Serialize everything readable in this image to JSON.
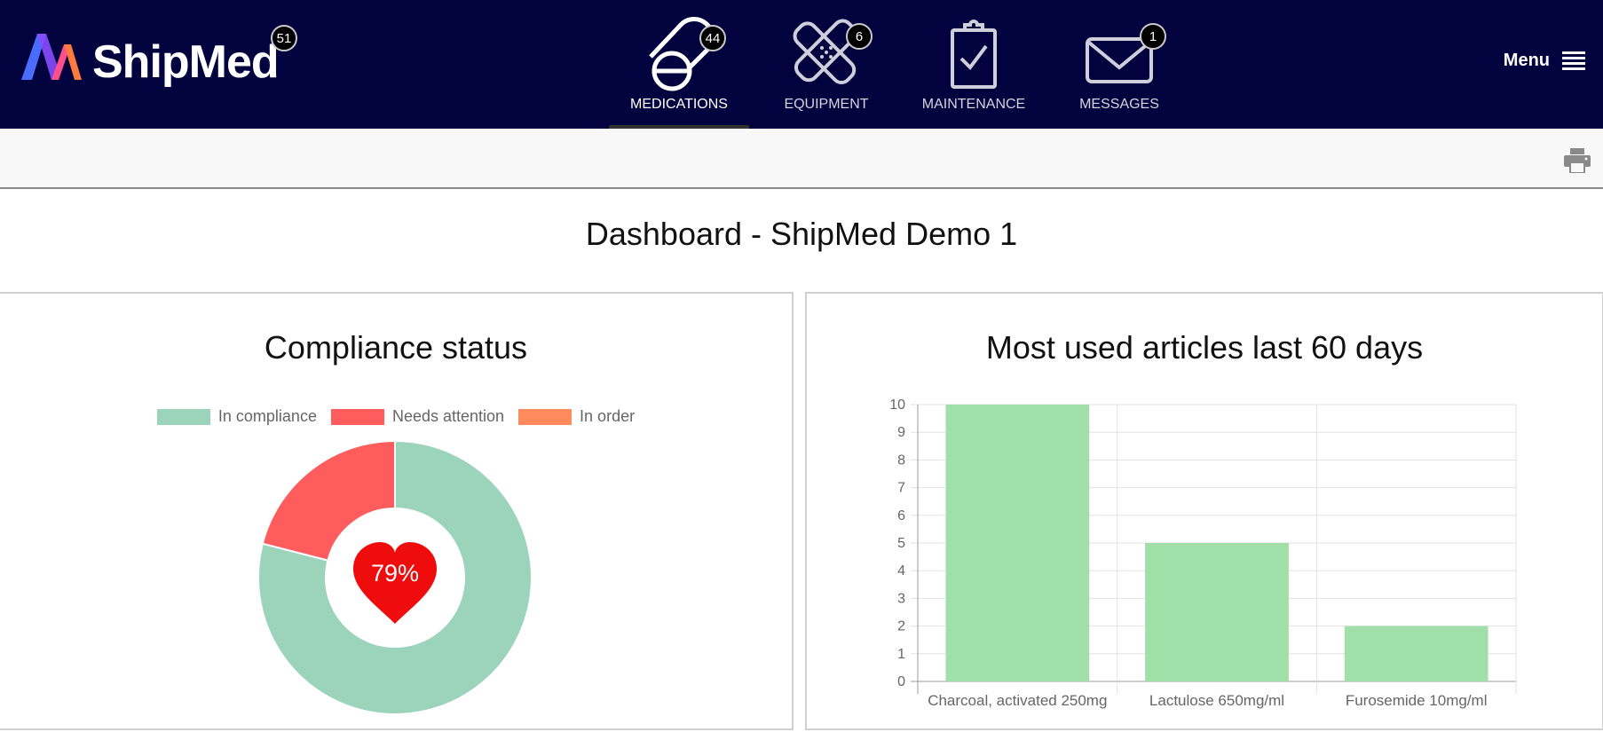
{
  "app": {
    "brand": "ShipMed",
    "brand_badge": "51",
    "menu_label": "Menu"
  },
  "nav": [
    {
      "label": "MEDICATIONS",
      "badge": "44",
      "icon": "pills-icon",
      "active": true
    },
    {
      "label": "EQUIPMENT",
      "badge": "6",
      "icon": "bandage-icon",
      "active": false
    },
    {
      "label": "MAINTENANCE",
      "badge": "",
      "icon": "clipboard-check-icon",
      "active": false
    },
    {
      "label": "MESSAGES",
      "badge": "1",
      "icon": "envelope-icon",
      "active": false
    }
  ],
  "page": {
    "title": "Dashboard - ShipMed Demo 1"
  },
  "compliance": {
    "title": "Compliance status",
    "center_value": "79%"
  },
  "articles": {
    "title": "Most used articles last 60 days"
  },
  "chart_data": [
    {
      "type": "pie",
      "title": "Compliance status",
      "categories": [
        "In compliance",
        "Needs attention",
        "In order"
      ],
      "values": [
        79,
        21,
        0
      ],
      "colors": [
        "#9bd4bb",
        "#ff5d5d",
        "#ff8a5c"
      ],
      "legend": "top",
      "center_label": "79%"
    },
    {
      "type": "bar",
      "title": "Most used articles last 60 days",
      "categories": [
        "Charcoal, activated 250mg",
        "Lactulose 650mg/ml",
        "Furosemide 10mg/ml"
      ],
      "values": [
        10,
        5,
        2
      ],
      "ylim": [
        0,
        10
      ],
      "yticks": [
        "0",
        "1",
        "2",
        "3",
        "4",
        "5",
        "6",
        "7",
        "8",
        "9",
        "10"
      ],
      "color": "#a0e0a8",
      "grid": true
    }
  ]
}
